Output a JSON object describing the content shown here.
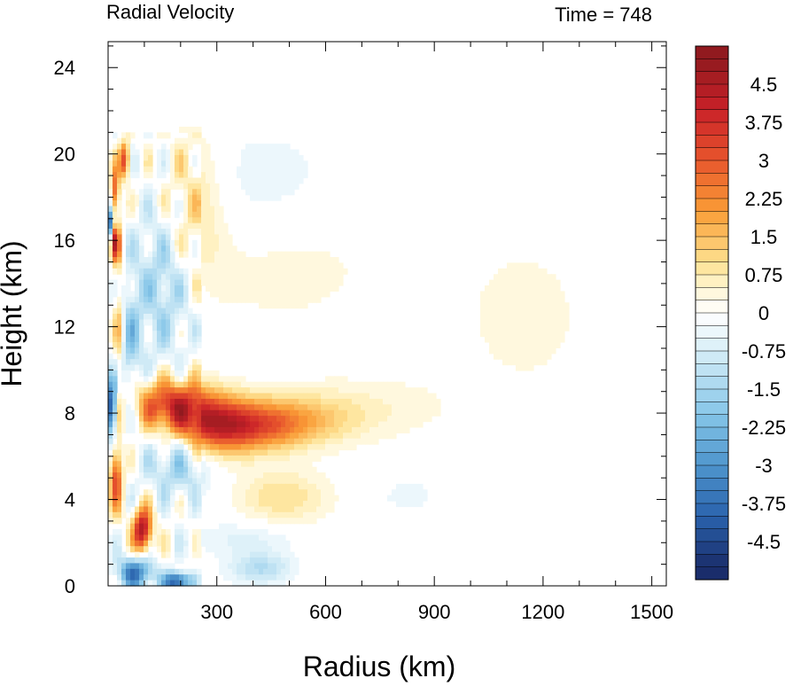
{
  "chart_data": {
    "type": "heatmap",
    "title": "Radial Velocity",
    "subtitle": "Time = 748",
    "xlabel": "Radius (km)",
    "ylabel": "Height (km)",
    "xlim": [
      0,
      1540
    ],
    "ylim": [
      0,
      25.2
    ],
    "x_ticks": [
      300,
      600,
      900,
      1200,
      1500
    ],
    "x_tick_labels": [
      "300",
      "600",
      "900",
      "1200",
      "1500"
    ],
    "y_ticks": [
      0,
      4,
      8,
      12,
      16,
      20,
      24
    ],
    "y_tick_labels": [
      "0",
      "4",
      "8",
      "12",
      "16",
      "20",
      "24"
    ],
    "colorbar": {
      "levels": [
        5.25,
        5.0,
        4.75,
        4.5,
        4.25,
        4.0,
        3.75,
        3.5,
        3.25,
        3.0,
        2.75,
        2.5,
        2.25,
        2.0,
        1.75,
        1.5,
        1.25,
        1.0,
        0.75,
        0.5,
        0.25,
        0.0,
        -0.25,
        -0.5,
        -0.75,
        -1.0,
        -1.25,
        -1.5,
        -1.75,
        -2.0,
        -2.25,
        -2.5,
        -2.75,
        -3.0,
        -3.25,
        -3.5,
        -3.75,
        -4.0,
        -4.25,
        -4.5,
        -4.75,
        -5.0,
        -5.25
      ],
      "labels": [
        "4.5",
        "3.75",
        "3",
        "2.25",
        "1.5",
        "0.75",
        "0",
        "-0.75",
        "-1.5",
        "-2.25",
        "-3",
        "-3.75",
        "-4.5"
      ],
      "label_values": [
        4.5,
        3.75,
        3.0,
        2.25,
        1.5,
        0.75,
        0.0,
        -0.75,
        -1.5,
        -2.25,
        -3.0,
        -3.75,
        -4.5
      ],
      "colors": {
        "5": "#911a1f",
        "4": "#c92128",
        "3": "#e8562d",
        "2": "#fa9d36",
        "1": "#fde08f",
        "0.5": "#fff6d3",
        "0": "#ffffff",
        "-0.5": "#e6f4fb",
        "-1": "#c7e6f4",
        "-2": "#86c6e8",
        "-3": "#4e95cd",
        "-4": "#2a63ad",
        "-5": "#1a2d6b"
      }
    },
    "features": [
      {
        "r": 175,
        "z": 8.4,
        "sr": 70,
        "sz": 0.8,
        "v": 3.6
      },
      {
        "r": 290,
        "z": 7.5,
        "sr": 70,
        "sz": 0.9,
        "v": 3.0
      },
      {
        "r": 400,
        "z": 7.4,
        "sr": 90,
        "sz": 0.8,
        "v": 2.3
      },
      {
        "r": 520,
        "z": 7.6,
        "sr": 110,
        "sz": 0.8,
        "v": 1.2
      },
      {
        "r": 680,
        "z": 8.2,
        "sr": 160,
        "sz": 1.0,
        "v": 0.5
      },
      {
        "r": 95,
        "z": 2.6,
        "sr": 18,
        "sz": 0.7,
        "v": 4.7
      },
      {
        "r": 22,
        "z": 5.1,
        "sr": 12,
        "sz": 1.1,
        "v": 3.3
      },
      {
        "r": 20,
        "z": 15.9,
        "sr": 8,
        "sz": 0.6,
        "v": 4.0
      },
      {
        "r": 45,
        "z": 19.7,
        "sr": 10,
        "sz": 0.6,
        "v": 3.2
      },
      {
        "r": 20,
        "z": 18.2,
        "sr": 8,
        "sz": 0.8,
        "v": 3.2
      },
      {
        "r": 30,
        "z": 12.0,
        "sr": 10,
        "sz": 2.4,
        "v": 1.5
      },
      {
        "r": 230,
        "z": 17.5,
        "sr": 60,
        "sz": 2.5,
        "v": 1.1
      },
      {
        "r": 480,
        "z": 4.1,
        "sr": 90,
        "sz": 0.9,
        "v": 1.0
      },
      {
        "r": 480,
        "z": 15.2,
        "sr": 200,
        "sz": 2.5,
        "v": 0.4
      },
      {
        "r": 1150,
        "z": 12.5,
        "sr": 200,
        "sz": 4.0,
        "v": 0.3
      },
      {
        "r": 10,
        "z": 8.3,
        "sr": 9,
        "sz": 1.0,
        "v": -4.7
      },
      {
        "r": 8,
        "z": 16.8,
        "sr": 6,
        "sz": 0.5,
        "v": -3.8
      },
      {
        "r": 60,
        "z": 11.0,
        "sr": 20,
        "sz": 2.0,
        "v": -1.5
      },
      {
        "r": 150,
        "z": 14.0,
        "sr": 60,
        "sz": 2.5,
        "v": -1.6
      },
      {
        "r": 190,
        "z": 5.5,
        "sr": 60,
        "sz": 1.0,
        "v": -1.5
      },
      {
        "r": 75,
        "z": 0.6,
        "sr": 35,
        "sz": 0.5,
        "v": -3.6
      },
      {
        "r": 190,
        "z": 0.2,
        "sr": 25,
        "sz": 0.3,
        "v": -4.5
      },
      {
        "r": 420,
        "z": 0.8,
        "sr": 60,
        "sz": 0.5,
        "v": -1.3
      },
      {
        "r": 380,
        "z": 2.2,
        "sr": 100,
        "sz": 0.6,
        "v": -0.6
      },
      {
        "r": 430,
        "z": 18.5,
        "sr": 160,
        "sz": 2.0,
        "v": -0.5
      },
      {
        "r": 830,
        "z": 4.2,
        "sr": 60,
        "sz": 0.6,
        "v": -0.4
      }
    ]
  }
}
